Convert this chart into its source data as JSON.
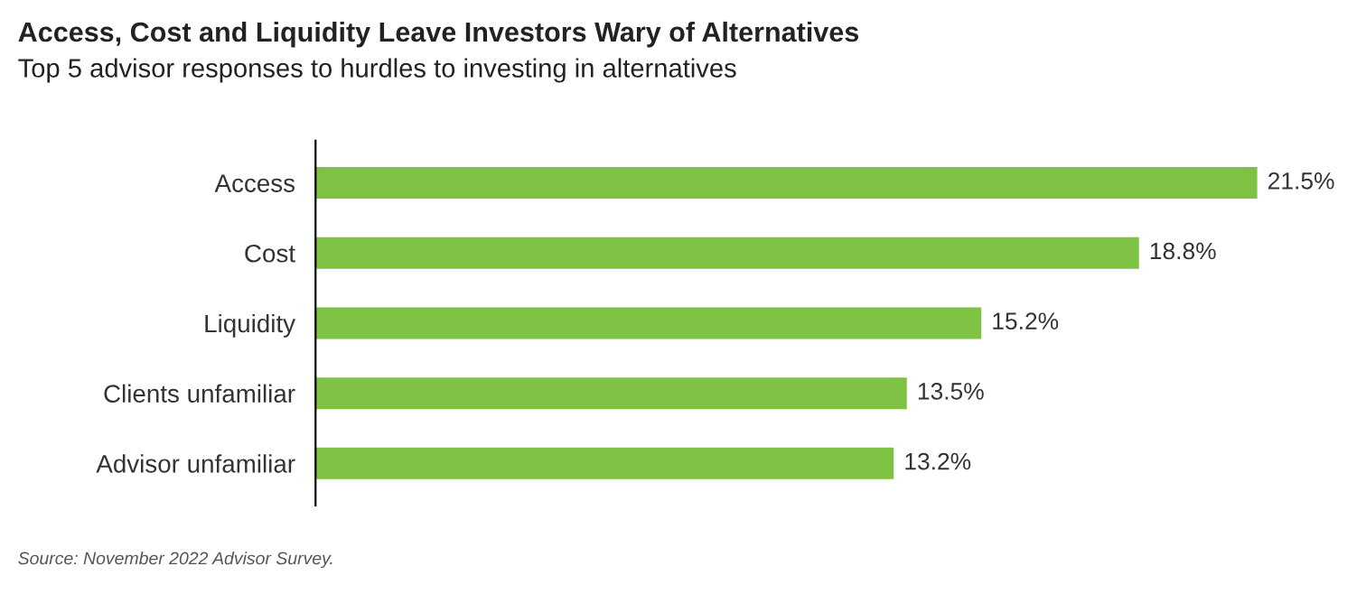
{
  "chart_data": {
    "type": "bar",
    "orientation": "horizontal",
    "title": "Access, Cost and Liquidity Leave Investors Wary of Alternatives",
    "subtitle": "Top 5 advisor responses to hurdles to investing in alternatives",
    "categories": [
      "Access",
      "Cost",
      "Liquidity",
      "Clients unfamiliar",
      "Advisor unfamiliar"
    ],
    "values": [
      21.5,
      18.8,
      15.2,
      13.5,
      13.2
    ],
    "value_labels": [
      "21.5%",
      "18.8%",
      "15.2%",
      "13.5%",
      "13.2%"
    ],
    "color": "#7dc242",
    "annotations": [
      "Source: November 2022 Advisor Survey."
    ],
    "grid": false,
    "legend": false
  }
}
